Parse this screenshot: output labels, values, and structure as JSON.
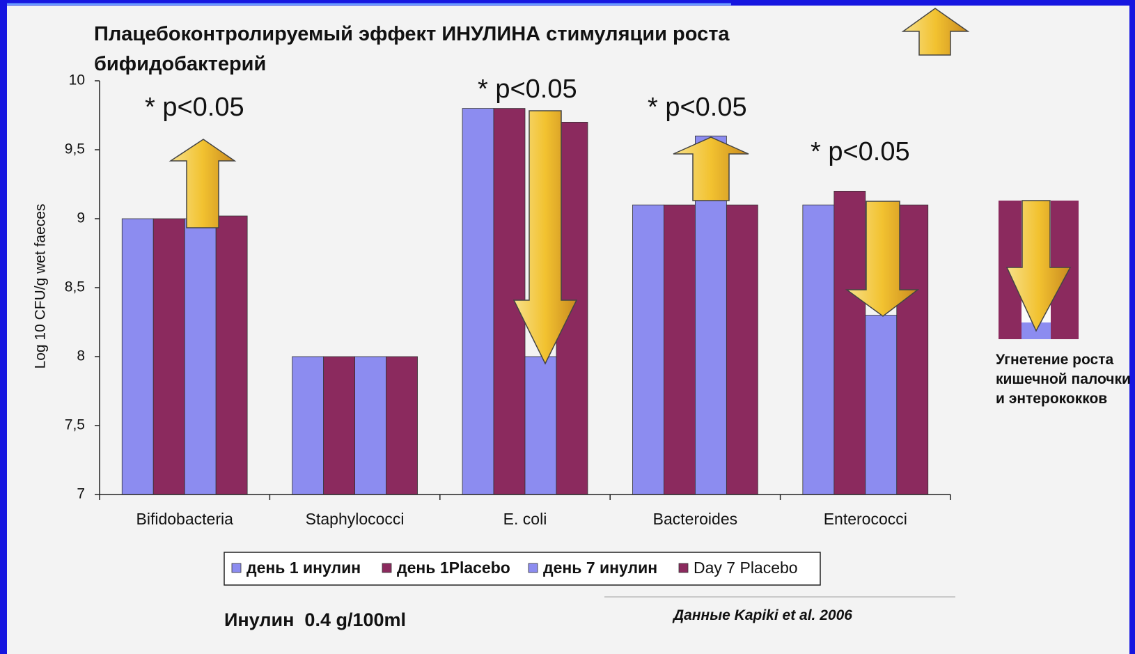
{
  "chart_data": {
    "type": "bar",
    "title": "Плацебоконтролируемый эффект ИНУЛИНА стимуляции роста бифидобактерий",
    "y_label": "Log 10 CFU/g wet faeces",
    "categories": [
      "Bifidobacteria",
      "Staphylococci",
      "E. coli",
      "Bacteroides",
      "Enterococci"
    ],
    "series": [
      {
        "name": "день 1 инулин",
        "color": "#8c8cf0",
        "values": [
          9.0,
          8.0,
          9.8,
          9.1,
          9.1
        ]
      },
      {
        "name": "день 1Placebo",
        "color": "#8b2a5e",
        "values": [
          9.0,
          8.0,
          9.8,
          9.1,
          9.2
        ]
      },
      {
        "name": "день 7 инулин",
        "color": "#8c8cf0",
        "values": [
          9.0,
          8.0,
          8.0,
          9.6,
          8.3
        ]
      },
      {
        "name": "Day 7 Placebo",
        "color": "#8b2a5e",
        "values": [
          9.02,
          8.0,
          9.7,
          9.1,
          9.1
        ]
      }
    ],
    "ylim": [
      7,
      10
    ],
    "yticks": [
      7,
      {
        "value": 7.5,
        "label": "7,5"
      },
      8,
      {
        "value": 8.5,
        "label": "8,5"
      },
      9,
      {
        "value": 9.5,
        "label": "9,5"
      },
      10
    ],
    "legend": "bottom",
    "annotations": [
      "* p<0.05",
      "* p<0.05",
      "* p<0.05",
      "* p<0.05"
    ],
    "side_note": "Угнетение роста кишечной палочки и энтерококков",
    "footer_left": "Инулин  0.4 g/100ml",
    "footer_right": "Данные Kapiki et al. 2006"
  }
}
